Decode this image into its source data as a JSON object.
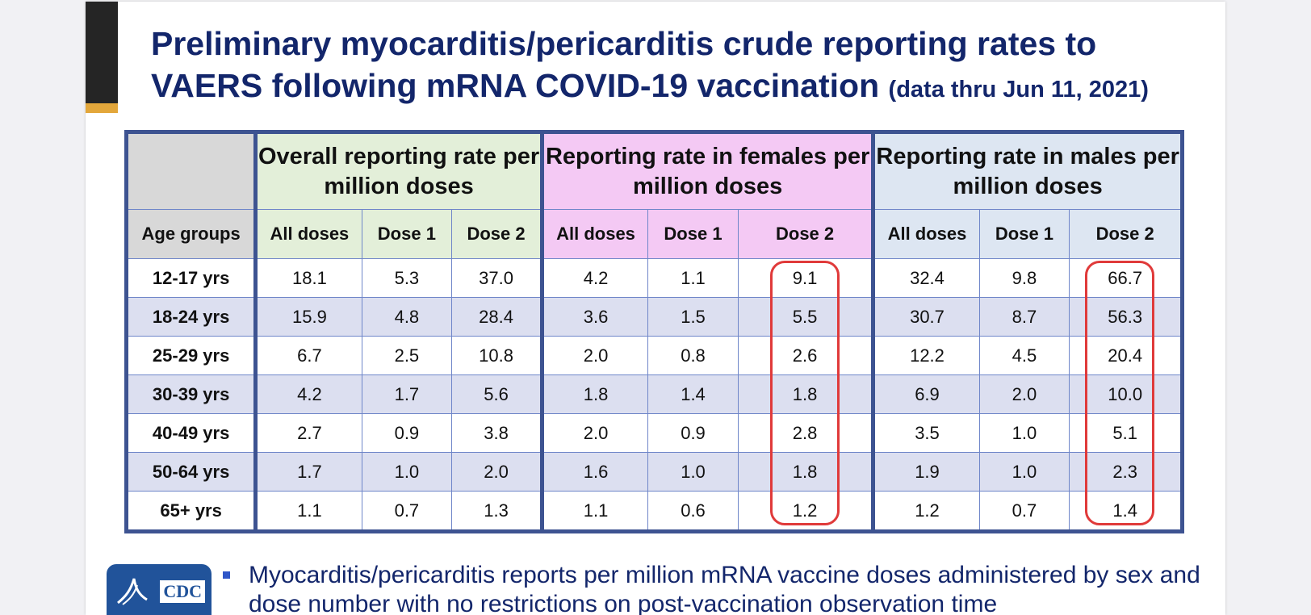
{
  "title": {
    "main": "Preliminary myocarditis/pericarditis crude reporting rates to VAERS following mRNA COVID-19 vaccination",
    "sub": "(data thru Jun 11, 2021)"
  },
  "table": {
    "groups": {
      "overall": "Overall reporting rate per million doses",
      "female": "Reporting rate in females per million doses",
      "male": "Reporting rate in males per million doses"
    },
    "columns": {
      "age": "Age groups",
      "all": "All doses",
      "dose1": "Dose 1",
      "dose2": "Dose 2"
    },
    "rows": [
      {
        "age": "12-17 yrs",
        "o_all": "18.1",
        "o_d1": "5.3",
        "o_d2": "37.0",
        "f_all": "4.2",
        "f_d1": "1.1",
        "f_d2": "9.1",
        "m_all": "32.4",
        "m_d1": "9.8",
        "m_d2": "66.7"
      },
      {
        "age": "18-24 yrs",
        "o_all": "15.9",
        "o_d1": "4.8",
        "o_d2": "28.4",
        "f_all": "3.6",
        "f_d1": "1.5",
        "f_d2": "5.5",
        "m_all": "30.7",
        "m_d1": "8.7",
        "m_d2": "56.3"
      },
      {
        "age": "25-29 yrs",
        "o_all": "6.7",
        "o_d1": "2.5",
        "o_d2": "10.8",
        "f_all": "2.0",
        "f_d1": "0.8",
        "f_d2": "2.6",
        "m_all": "12.2",
        "m_d1": "4.5",
        "m_d2": "20.4"
      },
      {
        "age": "30-39 yrs",
        "o_all": "4.2",
        "o_d1": "1.7",
        "o_d2": "5.6",
        "f_all": "1.8",
        "f_d1": "1.4",
        "f_d2": "1.8",
        "m_all": "6.9",
        "m_d1": "2.0",
        "m_d2": "10.0"
      },
      {
        "age": "40-49 yrs",
        "o_all": "2.7",
        "o_d1": "0.9",
        "o_d2": "3.8",
        "f_all": "2.0",
        "f_d1": "0.9",
        "f_d2": "2.8",
        "m_all": "3.5",
        "m_d1": "1.0",
        "m_d2": "5.1"
      },
      {
        "age": "50-64 yrs",
        "o_all": "1.7",
        "o_d1": "1.0",
        "o_d2": "2.0",
        "f_all": "1.6",
        "f_d1": "1.0",
        "f_d2": "1.8",
        "m_all": "1.9",
        "m_d1": "1.0",
        "m_d2": "2.3"
      },
      {
        "age": "65+ yrs",
        "o_all": "1.1",
        "o_d1": "0.7",
        "o_d2": "1.3",
        "f_all": "1.1",
        "f_d1": "0.6",
        "f_d2": "1.2",
        "m_all": "1.2",
        "m_d1": "0.7",
        "m_d2": "1.4"
      }
    ]
  },
  "logo": {
    "text": "CDC"
  },
  "bullet": {
    "text": "Myocarditis/pericarditis reports per million mRNA vaccine doses administered by sex and dose number with no restrictions on post-vaccination observation time"
  },
  "colors": {
    "title": "#13266b",
    "overall_header": "#e3efd9",
    "female_header": "#f4c9f4",
    "male_header": "#dde6f2",
    "highlight": "#e03a3a"
  }
}
